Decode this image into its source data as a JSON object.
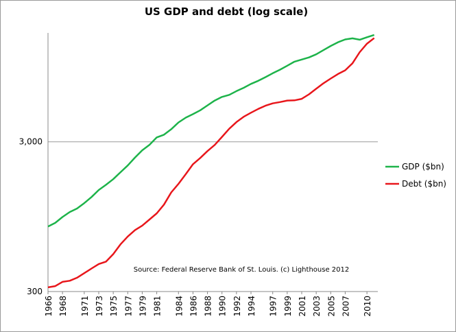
{
  "chart_data": {
    "type": "line",
    "title": "US GDP and debt (log scale)",
    "annotation": "Source: Federal Reserve Bank of St. Louis. (c) Lighthouse 2012",
    "log_scale": true,
    "grid": true,
    "legend": "right",
    "x": [
      1966,
      1967,
      1968,
      1969,
      1970,
      1971,
      1972,
      1973,
      1974,
      1975,
      1976,
      1977,
      1978,
      1979,
      1980,
      1981,
      1982,
      1983,
      1984,
      1985,
      1986,
      1987,
      1988,
      1989,
      1990,
      1991,
      1992,
      1993,
      1994,
      1995,
      1996,
      1997,
      1998,
      1999,
      2000,
      2001,
      2002,
      2003,
      2004,
      2005,
      2006,
      2007,
      2008,
      2009,
      2010,
      2011
    ],
    "xlim": [
      1966,
      2011.5
    ],
    "xticks": [
      1966,
      1968,
      1971,
      1973,
      1975,
      1977,
      1979,
      1981,
      1984,
      1986,
      1988,
      1990,
      1992,
      1994,
      1997,
      1999,
      2001,
      2003,
      2005,
      2007,
      2010
    ],
    "ylim": [
      300,
      16000
    ],
    "yticks": [
      300,
      {
        "value": 3000,
        "label": "3,000"
      }
    ],
    "series": [
      {
        "name": "GDP ($bn)",
        "color": "#1db34a",
        "values": [
          815,
          862,
          943,
          1019,
          1075,
          1168,
          1282,
          1429,
          1549,
          1689,
          1878,
          2086,
          2357,
          2632,
          2863,
          3211,
          3345,
          3638,
          4041,
          4347,
          4591,
          4870,
          5253,
          5658,
          5980,
          6174,
          6539,
          6879,
          7309,
          7664,
          8100,
          8609,
          9089,
          9661,
          10285,
          10622,
          10978,
          11511,
          12275,
          13094,
          13856,
          14478,
          14719,
          14419,
          14964,
          15518
        ]
      },
      {
        "name": "Debt ($bn)",
        "color": "#e8161b",
        "values": [
          320,
          326,
          348,
          354,
          371,
          398,
          427,
          458,
          475,
          533,
          620,
          699,
          772,
          827,
          908,
          998,
          1142,
          1377,
          1572,
          1823,
          2125,
          2340,
          2602,
          2857,
          3233,
          3665,
          4065,
          4411,
          4693,
          4974,
          5225,
          5413,
          5526,
          5656,
          5674,
          5807,
          6228,
          6783,
          7379,
          7933,
          8507,
          9008,
          10025,
          11910,
          13562,
          14790
        ]
      }
    ]
  }
}
